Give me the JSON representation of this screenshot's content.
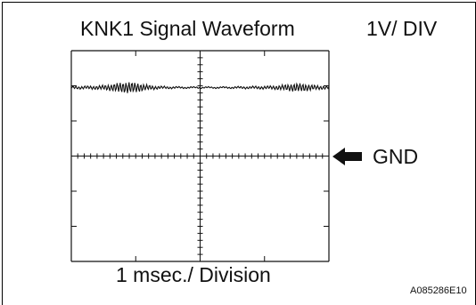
{
  "title": "KNK1 Signal Waveform",
  "scale_label": "1V/ DIV",
  "timebase_label": "1 msec./ Division",
  "gnd_label": "GND",
  "figure_id": "A085286E10",
  "chart_data": {
    "type": "line",
    "title": "KNK1 Signal Waveform",
    "xlabel": "1 msec./ Division",
    "ylabel": "1V/ DIV",
    "x_divisions": 4,
    "y_divisions": 6,
    "ground_marker": "GND",
    "series": [
      {
        "name": "",
        "description": ""
      }
    ]
  },
  "colors": {
    "ink": "#111111",
    "background": "#ffffff"
  }
}
